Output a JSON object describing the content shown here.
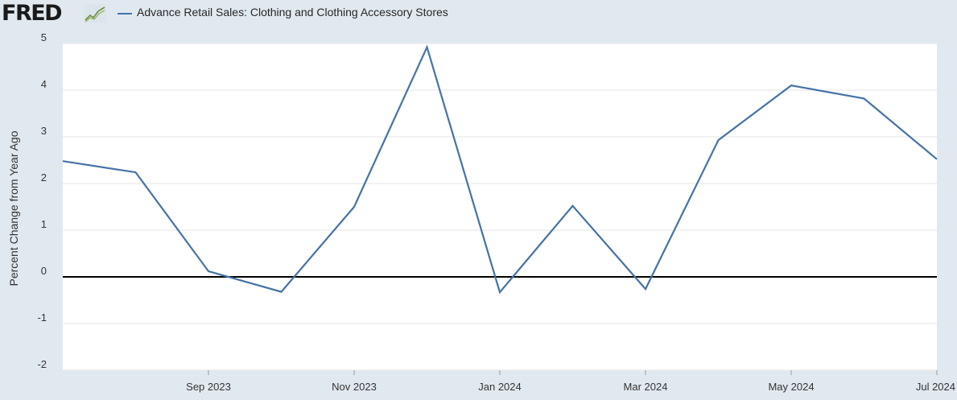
{
  "header": {
    "logo_text": "FRED",
    "logo_icon": "line-chart-icon",
    "legend_label": "Advance Retail Sales: Clothing and Clothing Accessory Stores"
  },
  "colors": {
    "series": "#4572a7",
    "background": "#e1e9f0",
    "plot": "#ffffff",
    "zero_line": "#000000"
  },
  "chart_data": {
    "type": "line",
    "ylabel": "Percent Change from Year Ago",
    "ylim": [
      -2,
      5
    ],
    "yticks": [
      "5",
      "4",
      "3",
      "2",
      "1",
      "0",
      "-1",
      "-2"
    ],
    "xlim": [
      "2023-07",
      "2024-07"
    ],
    "xticks": [
      {
        "label": "Sep 2023",
        "date": "2023-09"
      },
      {
        "label": "Nov 2023",
        "date": "2023-11"
      },
      {
        "label": "Jan 2024",
        "date": "2024-01"
      },
      {
        "label": "Mar 2024",
        "date": "2024-03"
      },
      {
        "label": "May 2024",
        "date": "2024-05"
      },
      {
        "label": "Jul 2024",
        "date": "2024-07"
      }
    ],
    "grid": true,
    "legend": "top-left",
    "series": [
      {
        "name": "Advance Retail Sales: Clothing and Clothing Accessory Stores",
        "x": [
          "2023-07",
          "2023-08",
          "2023-09",
          "2023-10",
          "2023-11",
          "2023-12",
          "2024-01",
          "2024-02",
          "2024-03",
          "2024-04",
          "2024-05",
          "2024-06",
          "2024-07"
        ],
        "values": [
          2.48,
          2.24,
          0.12,
          -0.32,
          1.5,
          4.92,
          -0.33,
          1.52,
          -0.26,
          2.93,
          4.1,
          3.82,
          2.52
        ]
      }
    ]
  }
}
